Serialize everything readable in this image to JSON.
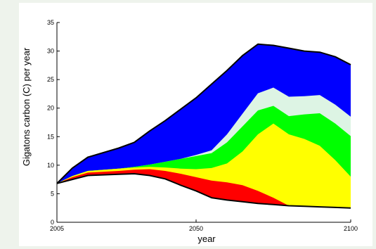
{
  "chart_data": {
    "type": "area",
    "title": "",
    "xlabel": "year",
    "ylabel": "Gigatons carbon (C) per year",
    "xlim": [
      2005,
      2100
    ],
    "ylim": [
      0,
      35
    ],
    "xticks": [
      2005,
      2050,
      2100
    ],
    "yticks": [
      0,
      5,
      10,
      15,
      20,
      25,
      30,
      35
    ],
    "grid": false,
    "legend": "none",
    "x": [
      2005,
      2010,
      2015,
      2025,
      2030,
      2035,
      2040,
      2045,
      2050,
      2055,
      2060,
      2065,
      2070,
      2075,
      2080,
      2085,
      2090,
      2095,
      2100
    ],
    "series": [
      {
        "color": "#000000",
        "values": [
          6.8,
          7.5,
          8.2,
          8.4,
          8.5,
          8.2,
          7.6,
          6.5,
          5.5,
          4.3,
          3.9,
          3.6,
          3.3,
          3.1,
          2.9,
          2.8,
          2.7,
          2.6,
          2.5
        ]
      },
      {
        "color": "#ff0000",
        "values": [
          6.8,
          7.9,
          8.7,
          9.0,
          9.2,
          9.3,
          9.0,
          8.5,
          7.9,
          7.3,
          7.0,
          6.5,
          5.5,
          4.3,
          2.9,
          2.8,
          2.7,
          2.6,
          2.5
        ]
      },
      {
        "color": "#ffff00",
        "values": [
          6.8,
          8.1,
          9.0,
          9.4,
          9.6,
          9.7,
          9.6,
          9.4,
          9.3,
          9.5,
          10.3,
          12.4,
          15.4,
          17.3,
          15.4,
          14.6,
          13.4,
          10.9,
          8.0
        ]
      },
      {
        "color": "#00ff00",
        "values": [
          6.8,
          8.1,
          9.0,
          9.4,
          9.7,
          10.1,
          10.6,
          11.1,
          11.6,
          12.1,
          14.0,
          16.8,
          19.6,
          20.4,
          18.6,
          18.9,
          19.1,
          17.3,
          15.1
        ]
      },
      {
        "color": "#ddf4e4",
        "values": [
          6.8,
          8.1,
          9.0,
          9.4,
          9.7,
          10.1,
          10.6,
          11.1,
          11.8,
          12.6,
          15.4,
          19.0,
          22.6,
          23.6,
          22.0,
          22.1,
          22.3,
          20.6,
          18.5
        ]
      },
      {
        "color": "#0000ff",
        "values": [
          6.8,
          9.5,
          11.4,
          13.0,
          14.0,
          16.0,
          17.8,
          19.8,
          21.8,
          24.2,
          26.6,
          29.2,
          31.2,
          31.0,
          30.5,
          30.0,
          29.8,
          29.0,
          27.6
        ]
      }
    ]
  }
}
